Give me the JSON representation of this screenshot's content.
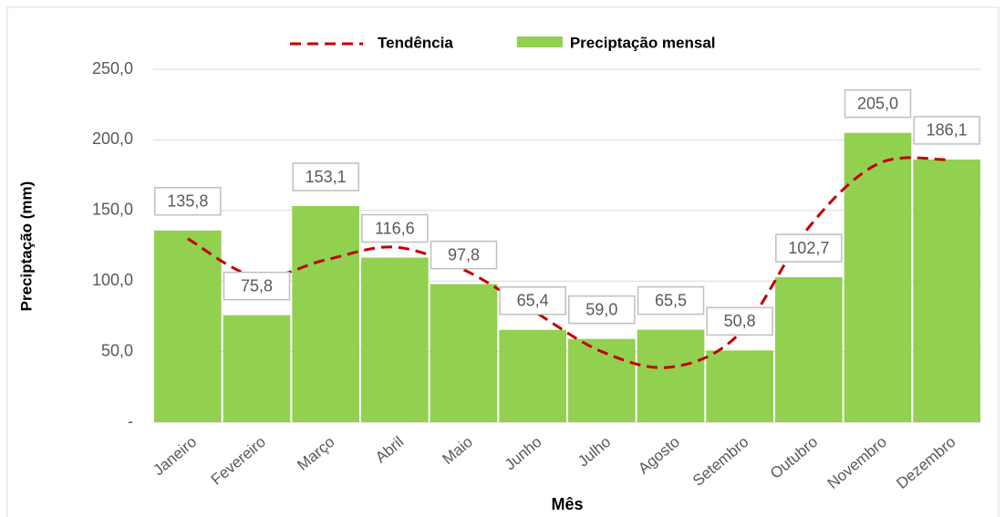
{
  "chart_data": {
    "type": "bar",
    "x_label": "Mês",
    "y_label": "Preciptação (mm)",
    "categories": [
      "Janeiro",
      "Fevereiro",
      "Março",
      "Abril",
      "Maio",
      "Junho",
      "Julho",
      "Agosto",
      "Setembro",
      "Outubro",
      "Novembro",
      "Dezembro"
    ],
    "series": [
      {
        "name": "Tendência",
        "type": "line",
        "dashed": true,
        "color": "#c00000",
        "values": [
          130,
          103,
          115,
          124,
          108,
          79,
          50,
          39,
          63,
          138,
          183,
          186
        ]
      },
      {
        "name": "Preciptação mensal",
        "type": "bar",
        "color": "#92d050",
        "values": [
          135.8,
          75.8,
          153.1,
          116.6,
          97.8,
          65.4,
          59.0,
          65.5,
          50.8,
          102.7,
          205.0,
          186.1
        ],
        "value_labels": [
          "135,8",
          "75,8",
          "153,1",
          "116,6",
          "97,8",
          "65,4",
          "59,0",
          "65,5",
          "50,8",
          "102,7",
          "205,0",
          "186,1"
        ]
      }
    ],
    "ylim": [
      0,
      250
    ],
    "yticks": [
      {
        "value": 0,
        "label": "-"
      },
      {
        "value": 50,
        "label": "50,0"
      },
      {
        "value": 100,
        "label": "100,0"
      },
      {
        "value": 150,
        "label": "150,0"
      },
      {
        "value": 200,
        "label": "200,0"
      },
      {
        "value": 250,
        "label": "250,0"
      }
    ],
    "grid": true,
    "legend": "top"
  }
}
